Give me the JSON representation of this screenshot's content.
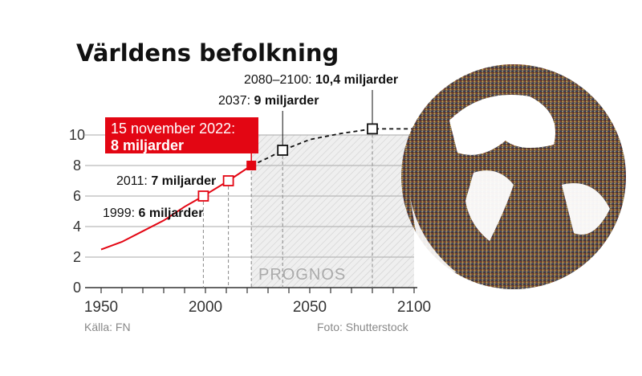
{
  "title": "Världens befolkning",
  "source": "Källa: FN",
  "photo_credit": "Foto: Shutterstock",
  "forecast_label": "PROGNOS",
  "colors": {
    "historical": "#e30613",
    "forecast": "#111111",
    "highlight_box": "#e30613",
    "grid": "#aaaaaa"
  },
  "chart_data": {
    "type": "line",
    "xlim": [
      1950,
      2100
    ],
    "ylim": [
      0,
      10
    ],
    "x_ticks": [
      "1950",
      "2000",
      "2050",
      "2100"
    ],
    "y_ticks": [
      "0",
      "2",
      "4",
      "6",
      "8",
      "10"
    ],
    "grid": "horizontal",
    "forecast_region": [
      2022,
      2100
    ],
    "series": [
      {
        "style": "solid-red",
        "x": [
          1950,
          1960,
          1970,
          1980,
          1990,
          1999,
          2011,
          2022
        ],
        "y": [
          2.5,
          3.0,
          3.7,
          4.4,
          5.3,
          6,
          7,
          8
        ]
      },
      {
        "style": "dashed-black",
        "x": [
          2022,
          2030,
          2037,
          2050,
          2065,
          2080,
          2100
        ],
        "y": [
          8,
          8.5,
          9,
          9.7,
          10.1,
          10.4,
          10.4
        ]
      }
    ],
    "annotations": [
      {
        "x": 1999,
        "y": 6,
        "prefix": "1999:",
        "value": "6 miljarder"
      },
      {
        "x": 2011,
        "y": 7,
        "prefix": "2011:",
        "value": "7 miljarder"
      },
      {
        "x": 2022,
        "y": 8,
        "prefix": "15 november 2022:",
        "value": "8 miljarder"
      },
      {
        "x": 2037,
        "y": 9,
        "prefix": "2037:",
        "value": "9 miljarder"
      },
      {
        "x": 2080,
        "y": 10.4,
        "prefix": "2080–2100:",
        "value": "10,4 miljarder"
      }
    ]
  }
}
